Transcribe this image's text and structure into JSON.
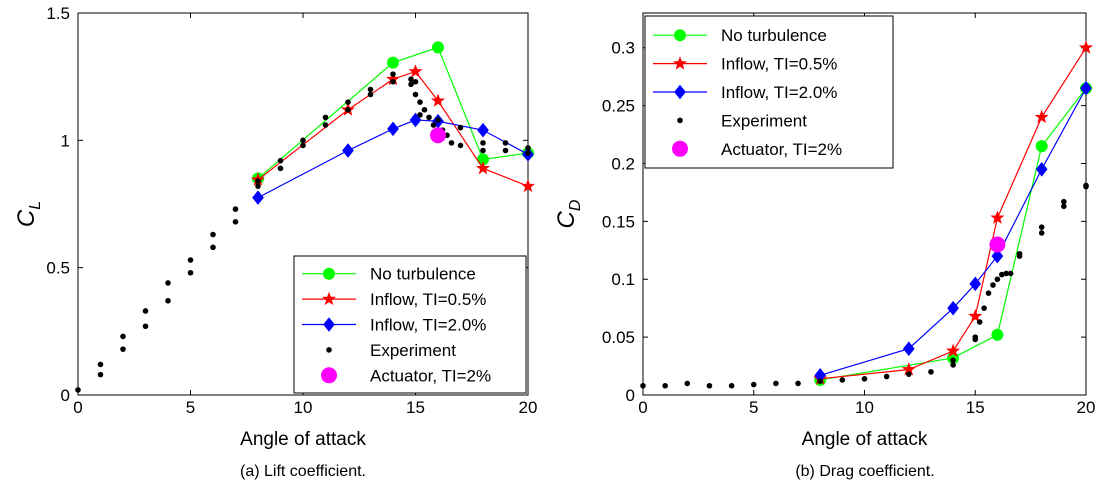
{
  "chart_data": [
    {
      "type": "line",
      "caption": "(a)  Lift coefficient.",
      "xlabel": "Angle of attack",
      "ylabel_main": "C",
      "ylabel_sub": "L",
      "xlim": [
        0,
        20
      ],
      "ylim": [
        0,
        1.5
      ],
      "xticks": [
        "0",
        "5",
        "10",
        "15",
        "20"
      ],
      "yticks": [
        "0",
        "0.5",
        "1",
        "1.5"
      ],
      "legend_position": "bottom-right",
      "series": [
        {
          "name": "No turbulence",
          "marker": "circle",
          "color": "#00ff00",
          "line": true,
          "x": [
            8,
            14,
            16,
            18,
            20
          ],
          "y": [
            0.85,
            1.305,
            1.365,
            0.925,
            0.95
          ]
        },
        {
          "name": "Inflow, TI=0.5%",
          "marker": "star",
          "color": "#ff0000",
          "line": true,
          "x": [
            8,
            12,
            14,
            15,
            16,
            18,
            20
          ],
          "y": [
            0.845,
            1.12,
            1.24,
            1.27,
            1.155,
            0.89,
            0.82
          ]
        },
        {
          "name": "Inflow, TI=2.0%",
          "marker": "diamond",
          "color": "#0000ff",
          "line": true,
          "x": [
            8,
            12,
            14,
            15,
            16,
            18,
            20
          ],
          "y": [
            0.775,
            0.96,
            1.045,
            1.08,
            1.075,
            1.04,
            0.945
          ]
        },
        {
          "name": "Experiment",
          "marker": "dot",
          "color": "#000000",
          "line": false,
          "x": [
            0,
            1,
            1,
            2,
            2,
            3,
            3,
            4,
            4,
            5,
            5,
            6,
            6,
            7,
            7,
            8,
            8,
            9,
            9,
            10,
            10,
            11,
            11,
            12,
            12,
            13,
            13,
            14,
            14,
            14.8,
            14.8,
            15,
            15,
            15.2,
            15.2,
            15.4,
            15.6,
            15.8,
            16,
            16.2,
            16.4,
            16.6,
            17,
            17,
            18,
            18,
            19,
            19,
            20,
            20
          ],
          "y": [
            0.02,
            0.12,
            0.08,
            0.23,
            0.18,
            0.33,
            0.27,
            0.44,
            0.37,
            0.53,
            0.48,
            0.63,
            0.58,
            0.73,
            0.68,
            0.84,
            0.82,
            0.92,
            0.89,
            1.0,
            0.98,
            1.09,
            1.06,
            1.15,
            1.12,
            1.2,
            1.18,
            1.26,
            1.23,
            1.24,
            1.22,
            1.23,
            1.18,
            1.15,
            1.1,
            1.12,
            1.09,
            1.06,
            1.08,
            1.04,
            1.02,
            0.99,
            1.05,
            0.98,
            0.99,
            0.96,
            0.99,
            0.96,
            0.97,
            0.95
          ]
        },
        {
          "name": "Actuator, TI=2%",
          "marker": "bigdot",
          "color": "#ff00ff",
          "line": false,
          "x": [
            16
          ],
          "y": [
            1.02
          ]
        }
      ]
    },
    {
      "type": "line",
      "caption": "(b)  Drag coefficient.",
      "xlabel": "Angle of attack",
      "ylabel_main": "C",
      "ylabel_sub": "D",
      "xlim": [
        0,
        20
      ],
      "ylim": [
        0,
        0.33
      ],
      "xticks": [
        "0",
        "5",
        "10",
        "15",
        "20"
      ],
      "yticks": [
        "0",
        "0.05",
        "0.1",
        "0.15",
        "0.2",
        "0.25",
        "0.3"
      ],
      "ytick_values": [
        0,
        0.05,
        0.1,
        0.15,
        0.2,
        0.25,
        0.3
      ],
      "legend_position": "top-left",
      "series": [
        {
          "name": "No turbulence",
          "marker": "circle",
          "color": "#00ff00",
          "line": true,
          "x": [
            8,
            14,
            16,
            18,
            20
          ],
          "y": [
            0.013,
            0.032,
            0.052,
            0.215,
            0.265
          ]
        },
        {
          "name": "Inflow, TI=0.5%",
          "marker": "star",
          "color": "#ff0000",
          "line": true,
          "x": [
            8,
            12,
            14,
            15,
            16,
            18,
            20
          ],
          "y": [
            0.014,
            0.022,
            0.038,
            0.068,
            0.153,
            0.24,
            0.3
          ]
        },
        {
          "name": "Inflow, TI=2.0%",
          "marker": "diamond",
          "color": "#0000ff",
          "line": true,
          "x": [
            8,
            12,
            14,
            15,
            16,
            18,
            20
          ],
          "y": [
            0.017,
            0.04,
            0.075,
            0.096,
            0.12,
            0.195,
            0.265
          ]
        },
        {
          "name": "Experiment",
          "marker": "dot",
          "color": "#000000",
          "line": false,
          "x": [
            0,
            1,
            2,
            3,
            4,
            5,
            6,
            7,
            8,
            9,
            10,
            11,
            12,
            13,
            14,
            14,
            15,
            15,
            15.2,
            15.4,
            15.6,
            15.8,
            16,
            16.2,
            16.4,
            16.6,
            17,
            17,
            18,
            18,
            19,
            19,
            20,
            20
          ],
          "y": [
            0.008,
            0.008,
            0.01,
            0.008,
            0.008,
            0.009,
            0.01,
            0.01,
            0.012,
            0.013,
            0.014,
            0.016,
            0.018,
            0.02,
            0.026,
            0.03,
            0.05,
            0.048,
            0.063,
            0.075,
            0.088,
            0.095,
            0.1,
            0.104,
            0.105,
            0.105,
            0.12,
            0.122,
            0.14,
            0.145,
            0.163,
            0.167,
            0.18,
            0.181
          ]
        },
        {
          "name": "Actuator, TI=2%",
          "marker": "bigdot",
          "color": "#ff00ff",
          "line": false,
          "x": [
            16
          ],
          "y": [
            0.13
          ]
        }
      ]
    }
  ]
}
